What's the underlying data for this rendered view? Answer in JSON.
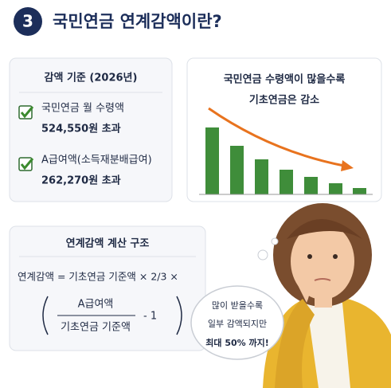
{
  "header": {
    "number": "3",
    "title": "국민연금 연계감액이란?"
  },
  "criteria": {
    "title": "감액 기준 (2026년)",
    "items": [
      {
        "label": "국민연금 월 수령액",
        "value": "524,550원 초과"
      },
      {
        "label": "A급여액(소득재분배급여)",
        "value": "262,270원 초과"
      }
    ]
  },
  "trend": {
    "lines": [
      "국민연금 수령액이 많을수록",
      "기초연금은 감소"
    ]
  },
  "formula": {
    "title": "연계감액 계산 구조",
    "expression": "연계감액 = 기초연금 기준액 × 2/3 ×",
    "numerator": "A급여액",
    "denominator": "기초연금 기준액",
    "minus": "- 1"
  },
  "bubble": {
    "lines": [
      "많이 받을수록",
      "일부 감액되지만",
      "최대 50% 까지!"
    ]
  }
}
